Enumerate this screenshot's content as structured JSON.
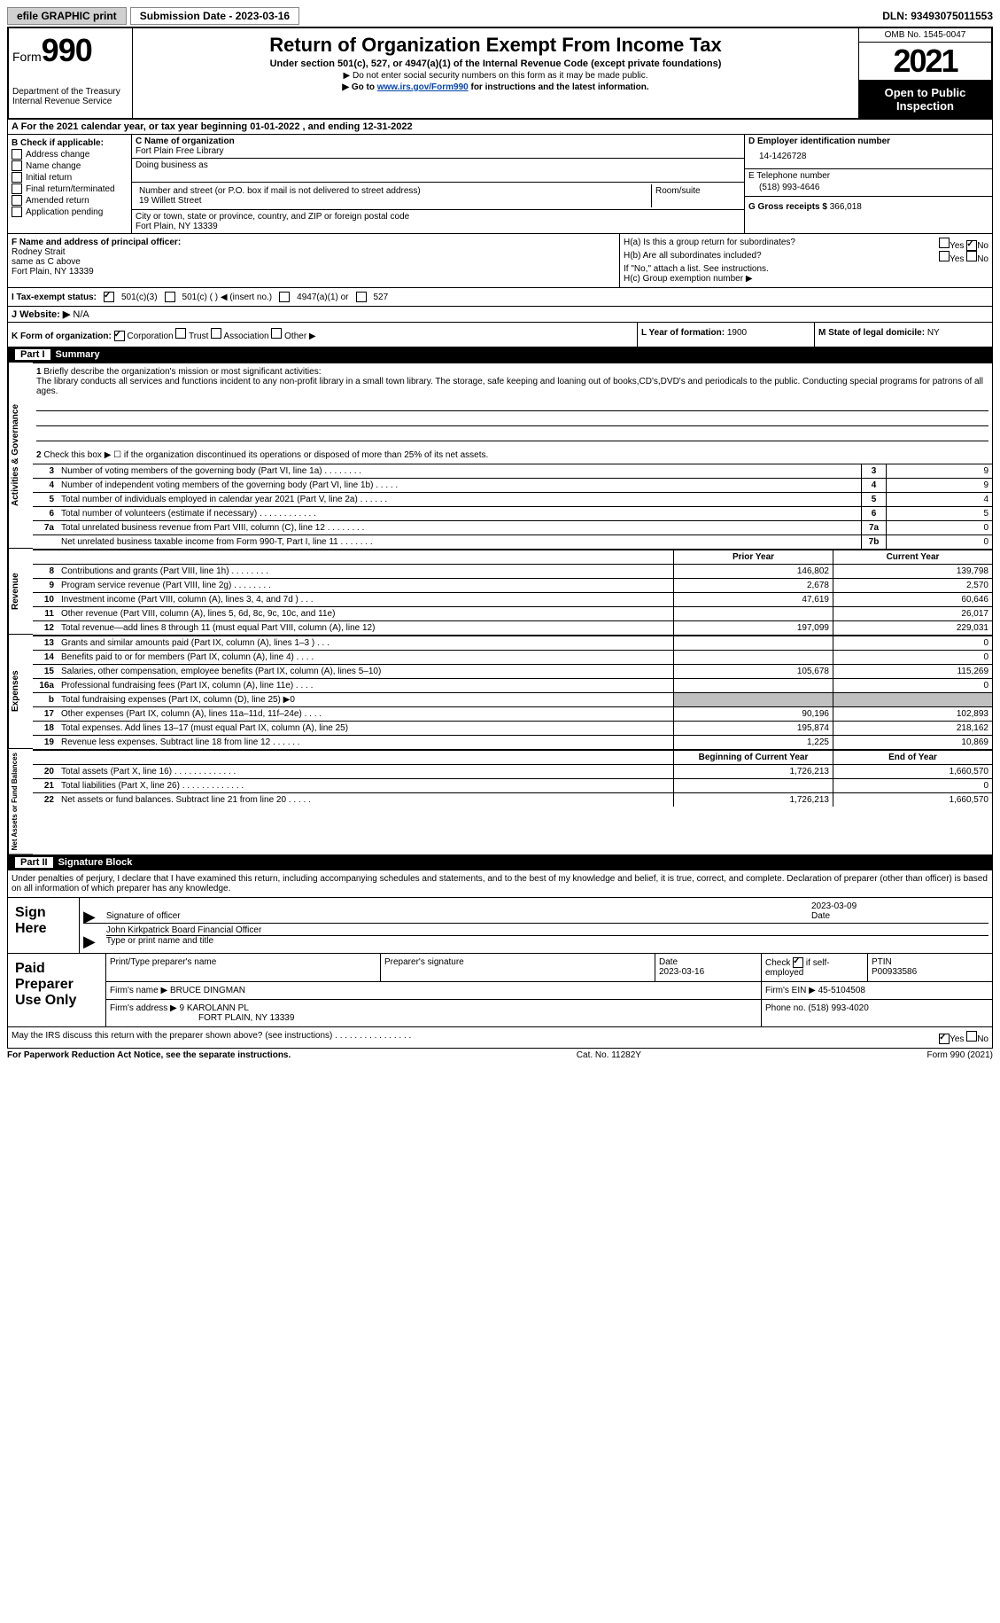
{
  "top": {
    "efile": "efile GRAPHIC print",
    "sub_label": "Submission Date - 2023-03-16",
    "dln": "DLN: 93493075011553"
  },
  "header": {
    "form_label": "Form",
    "form_no": "990",
    "dept": "Department of the Treasury",
    "irs": "Internal Revenue Service",
    "title": "Return of Organization Exempt From Income Tax",
    "sub1": "Under section 501(c), 527, or 4947(a)(1) of the Internal Revenue Code (except private foundations)",
    "sub2": "▶ Do not enter social security numbers on this form as it may be made public.",
    "sub3_pre": "▶ Go to ",
    "sub3_link": "www.irs.gov/Form990",
    "sub3_post": " for instructions and the latest information.",
    "omb": "OMB No. 1545-0047",
    "year": "2021",
    "open": "Open to Public Inspection"
  },
  "rowA": "A For the 2021 calendar year, or tax year beginning 01-01-2022    , and ending 12-31-2022",
  "b": {
    "title": "B Check if applicable:",
    "items": [
      "Address change",
      "Name change",
      "Initial return",
      "Final return/terminated",
      "Amended return",
      "Application pending"
    ]
  },
  "c": {
    "name_lbl": "C Name of organization",
    "name": "Fort Plain Free Library",
    "dba_lbl": "Doing business as",
    "addr_lbl": "Number and street (or P.O. box if mail is not delivered to street address)",
    "room_lbl": "Room/suite",
    "addr": "19 Willett Street",
    "city_lbl": "City or town, state or province, country, and ZIP or foreign postal code",
    "city": "Fort Plain, NY  13339"
  },
  "d": {
    "ein_lbl": "D Employer identification number",
    "ein": "14-1426728",
    "tel_lbl": "E Telephone number",
    "tel": "(518) 993-4646",
    "gross_lbl": "G Gross receipts $",
    "gross": "366,018"
  },
  "f": {
    "lbl": "F Name and address of principal officer:",
    "name": "Rodney Strait",
    "same": "same as C above",
    "city": "Fort Plain, NY  13339"
  },
  "h": {
    "a_lbl": "H(a)  Is this a group return for subordinates?",
    "b_lbl": "H(b)  Are all subordinates included?",
    "note": "If \"No,\" attach a list. See instructions.",
    "c_lbl": "H(c)  Group exemption number ▶"
  },
  "i": {
    "lbl": "I  Tax-exempt status:",
    "o1": "501(c)(3)",
    "o2": "501(c) (  ) ◀ (insert no.)",
    "o3": "4947(a)(1) or",
    "o4": "527"
  },
  "j": {
    "lbl": "J  Website: ▶",
    "val": "  N/A"
  },
  "k": {
    "lbl": "K Form of organization:",
    "o1": "Corporation",
    "o2": "Trust",
    "o3": "Association",
    "o4": "Other ▶",
    "l_lbl": "L Year of formation:",
    "l_val": "1900",
    "m_lbl": "M State of legal domicile:",
    "m_val": "NY"
  },
  "part1": {
    "no": "Part I",
    "title": "Summary",
    "q1_lbl": "Briefly describe the organization's mission or most significant activities:",
    "q1_txt": "The library conducts all services and functions incident to any non-profit library in a small town library. The storage, safe keeping and loaning out of books,CD's,DVD's and periodicals to the public. Conducting special programs for patrons of all ages.",
    "q2": "Check this box ▶ ☐ if the organization discontinued its operations or disposed of more than 25% of its net assets.",
    "rows_num": [
      {
        "n": "3",
        "lbl": "Number of voting members of the governing body (Part VI, line 1a)   .    .    .    .    .    .    .    .",
        "box": "3",
        "val": "9"
      },
      {
        "n": "4",
        "lbl": "Number of independent voting members of the governing body (Part VI, line 1b)   .    .    .    .    .",
        "box": "4",
        "val": "9"
      },
      {
        "n": "5",
        "lbl": "Total number of individuals employed in calendar year 2021 (Part V, line 2a)   .    .    .    .    .    .",
        "box": "5",
        "val": "4"
      },
      {
        "n": "6",
        "lbl": "Total number of volunteers (estimate if necessary)    .    .    .    .    .    .    .    .    .    .    .    .",
        "box": "6",
        "val": "5"
      },
      {
        "n": "7a",
        "lbl": "Total unrelated business revenue from Part VIII, column (C), line 12   .    .    .    .    .    .    .    .",
        "box": "7a",
        "val": "0"
      },
      {
        "n": "",
        "lbl": "Net unrelated business taxable income from Form 990-T, Part I, line 11   .    .    .    .    .    .    .",
        "box": "7b",
        "val": "0"
      }
    ],
    "fin_hdr_prior": "Prior Year",
    "fin_hdr_curr": "Current Year",
    "revenue": [
      {
        "n": "8",
        "lbl": "Contributions and grants (Part VIII, line 1h)    .    .    .    .    .    .    .    .",
        "pv": "146,802",
        "cv": "139,798"
      },
      {
        "n": "9",
        "lbl": "Program service revenue (Part VIII, line 2g)    .    .    .    .    .    .    .    .",
        "pv": "2,678",
        "cv": "2,570"
      },
      {
        "n": "10",
        "lbl": "Investment income (Part VIII, column (A), lines 3, 4, and 7d )    .    .    .",
        "pv": "47,619",
        "cv": "60,646"
      },
      {
        "n": "11",
        "lbl": "Other revenue (Part VIII, column (A), lines 5, 6d, 8c, 9c, 10c, and 11e)",
        "pv": "",
        "cv": "26,017"
      },
      {
        "n": "12",
        "lbl": "Total revenue—add lines 8 through 11 (must equal Part VIII, column (A), line 12)",
        "pv": "197,099",
        "cv": "229,031"
      }
    ],
    "expenses": [
      {
        "n": "13",
        "lbl": "Grants and similar amounts paid (Part IX, column (A), lines 1–3 )   .    .    .",
        "pv": "",
        "cv": "0"
      },
      {
        "n": "14",
        "lbl": "Benefits paid to or for members (Part IX, column (A), line 4)   .    .    .    .",
        "pv": "",
        "cv": "0"
      },
      {
        "n": "15",
        "lbl": "Salaries, other compensation, employee benefits (Part IX, column (A), lines 5–10)",
        "pv": "105,678",
        "cv": "115,269"
      },
      {
        "n": "16a",
        "lbl": "Professional fundraising fees (Part IX, column (A), line 11e)   .    .    .    .",
        "pv": "",
        "cv": "0"
      },
      {
        "n": "b",
        "lbl": "Total fundraising expenses (Part IX, column (D), line 25) ▶0",
        "pv": "GRAY",
        "cv": "GRAY"
      },
      {
        "n": "17",
        "lbl": "Other expenses (Part IX, column (A), lines 11a–11d, 11f–24e)   .    .    .    .",
        "pv": "90,196",
        "cv": "102,893"
      },
      {
        "n": "18",
        "lbl": "Total expenses. Add lines 13–17 (must equal Part IX, column (A), line 25)",
        "pv": "195,874",
        "cv": "218,162"
      },
      {
        "n": "19",
        "lbl": "Revenue less expenses. Subtract line 18 from line 12   .    .    .    .    .    .",
        "pv": "1,225",
        "cv": "10,869"
      }
    ],
    "net_hdr_beg": "Beginning of Current Year",
    "net_hdr_end": "End of Year",
    "net": [
      {
        "n": "20",
        "lbl": "Total assets (Part X, line 16)   .    .    .    .    .    .    .    .    .    .    .    .    .",
        "pv": "1,726,213",
        "cv": "1,660,570"
      },
      {
        "n": "21",
        "lbl": "Total liabilities (Part X, line 26)   .    .    .    .    .    .    .    .    .    .    .    .    .",
        "pv": "",
        "cv": "0"
      },
      {
        "n": "22",
        "lbl": "Net assets or fund balances. Subtract line 21 from line 20   .    .    .    .    .",
        "pv": "1,726,213",
        "cv": "1,660,570"
      }
    ]
  },
  "part2": {
    "no": "Part II",
    "title": "Signature Block",
    "decl": "Under penalties of perjury, I declare that I have examined this return, including accompanying schedules and statements, and to the best of my knowledge and belief, it is true, correct, and complete. Declaration of preparer (other than officer) is based on all information of which preparer has any knowledge."
  },
  "sign": {
    "lbl": "Sign Here",
    "sig_lbl": "Signature of officer",
    "date": "2023-03-09",
    "date_lbl": "Date",
    "name": "John Kirkpatrick  Board Financial Officer",
    "name_lbl": "Type or print name and title"
  },
  "paid": {
    "lbl": "Paid Preparer Use Only",
    "h1": "Print/Type preparer's name",
    "h2": "Preparer's signature",
    "h3": "Date",
    "date": "2023-03-16",
    "h4_pre": "Check",
    "h4_post": "if self-employed",
    "h5": "PTIN",
    "ptin": "P00933586",
    "firm_lbl": "Firm's name      ▶",
    "firm": "BRUCE DINGMAN",
    "ein_lbl": "Firm's EIN ▶",
    "ein": "45-5104508",
    "addr_lbl": "Firm's address ▶",
    "addr1": "9 KAROLANN PL",
    "addr2": "FORT PLAIN, NY  13339",
    "ph_lbl": "Phone no.",
    "ph": "(518) 993-4020"
  },
  "discuss": "May the IRS discuss this return with the preparer shown above? (see instructions)    .    .    .    .    .    .    .    .    .    .    .    .    .    .    .    .",
  "footer": {
    "l": "For Paperwork Reduction Act Notice, see the separate instructions.",
    "c": "Cat. No. 11282Y",
    "r": "Form 990 (2021)"
  },
  "vtabs": {
    "gov": "Activities & Governance",
    "rev": "Revenue",
    "exp": "Expenses",
    "net": "Net Assets or Fund Balances"
  }
}
